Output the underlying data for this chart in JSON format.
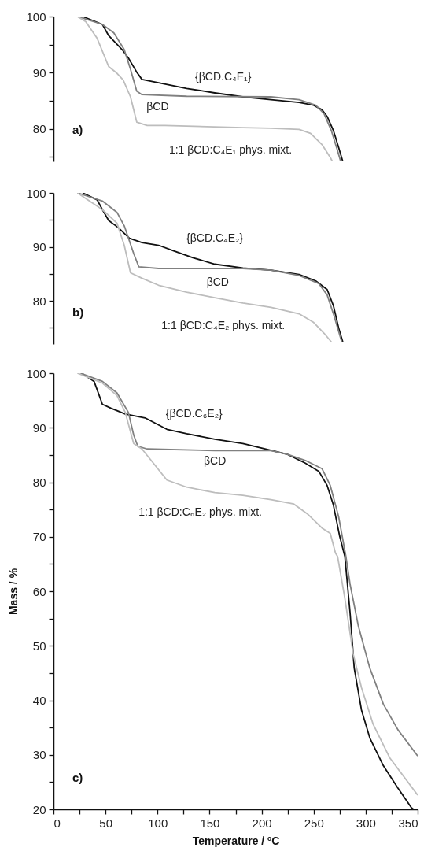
{
  "chart_data": [
    {
      "type": "line",
      "xlim": [
        0,
        350
      ],
      "ylim": [
        74.2,
        100
      ],
      "yticks": [
        {
          "value": 75,
          "label": null
        },
        80,
        {
          "value": 85,
          "label": null
        },
        90,
        {
          "value": 95,
          "label": null
        },
        100
      ],
      "tick_labels": "y",
      "series": [
        {
          "name": "{βCD.C₄E₁}",
          "color": "#111111",
          "x": [
            28,
            47,
            53,
            66,
            72,
            80,
            85,
            101,
            128,
            155,
            182,
            209,
            236,
            250,
            258,
            263,
            269,
            274,
            278
          ],
          "values": [
            100,
            98.6,
            96.6,
            94.1,
            92.6,
            90.1,
            88.8,
            88.2,
            87.2,
            86.4,
            85.7,
            85.2,
            84.7,
            84.2,
            83.4,
            82.2,
            79.7,
            76.7,
            74.2
          ]
        },
        {
          "name": "βCD",
          "color": "#808080",
          "x": [
            23,
            47,
            58,
            68,
            74,
            80,
            85,
            128,
            209,
            236,
            252,
            260,
            267,
            272,
            276
          ],
          "values": [
            100,
            98.6,
            97.1,
            94.1,
            90.6,
            86.7,
            86.1,
            85.8,
            85.7,
            85.2,
            84.2,
            82.7,
            79.7,
            76.7,
            74.2
          ]
        },
        {
          "name": "1:1 βCD:C₄E₁ phys. mixt.",
          "color": "#bdbdbd",
          "x": [
            23,
            31,
            42,
            53,
            61,
            67,
            74,
            80,
            90,
            107,
            128,
            182,
            209,
            236,
            247,
            258,
            266,
            268
          ],
          "values": [
            100,
            99.1,
            96.1,
            91.1,
            89.9,
            88.7,
            85.7,
            81.2,
            80.6,
            80.6,
            80.5,
            80.2,
            80.1,
            79.9,
            79.2,
            77.2,
            74.9,
            74.2
          ]
        }
      ],
      "annotations": [
        "a)"
      ]
    },
    {
      "type": "line",
      "xlim": [
        0,
        350
      ],
      "ylim": [
        72,
        100
      ],
      "yticks": [
        {
          "value": 75,
          "label": null
        },
        80,
        {
          "value": 85,
          "label": null
        },
        90,
        {
          "value": 95,
          "label": null
        },
        100
      ],
      "tick_labels": "y",
      "series": [
        {
          "name": "{βCD.C₄E₂}",
          "color": "#111111",
          "x": [
            28,
            42,
            47,
            53,
            62,
            73,
            85,
            101,
            115,
            134,
            155,
            182,
            209,
            236,
            252,
            263,
            269,
            274,
            278
          ],
          "values": [
            100,
            98.7,
            96.9,
            94.9,
            93.6,
            91.6,
            90.8,
            90.3,
            89.3,
            88.0,
            86.8,
            86.1,
            85.7,
            84.9,
            83.7,
            82.1,
            79.1,
            75,
            72.4
          ]
        },
        {
          "name": "βCD",
          "color": "#808080",
          "x": [
            23,
            47,
            61,
            68,
            77,
            82,
            101,
            182,
            209,
            236,
            255,
            263,
            269,
            277
          ],
          "values": [
            100,
            98.5,
            96.4,
            93.9,
            88.8,
            86.3,
            86.0,
            86.0,
            85.7,
            84.7,
            83.2,
            81.1,
            77.6,
            72.4
          ]
        },
        {
          "name": "1:1 βCD:C₄E₂ phys. mixt.",
          "color": "#bdbdbd",
          "x": [
            23,
            47,
            61,
            68,
            74,
            85,
            101,
            128,
            155,
            182,
            209,
            236,
            250,
            260,
            267
          ],
          "values": [
            100,
            96.9,
            94.4,
            90.3,
            85.2,
            84.2,
            82.9,
            81.6,
            80.6,
            79.6,
            78.8,
            77.6,
            76.0,
            74.0,
            72.4
          ]
        }
      ],
      "annotations": [
        "b)"
      ]
    },
    {
      "type": "line",
      "xlabel": "Temperature / ºC",
      "ylabel": "Mass / %",
      "xlim": [
        0,
        350
      ],
      "xticks": [
        0,
        {
          "value": 25,
          "label": null
        },
        50,
        {
          "value": 75,
          "label": null
        },
        100,
        {
          "value": 125,
          "label": null
        },
        150,
        {
          "value": 175,
          "label": null
        },
        200,
        {
          "value": 225,
          "label": null
        },
        250,
        {
          "value": 275,
          "label": null
        },
        300,
        {
          "value": 325,
          "label": null
        },
        350
      ],
      "ylim": [
        20,
        100
      ],
      "yticks": [
        20,
        {
          "value": 25,
          "label": null
        },
        30,
        {
          "value": 35,
          "label": null
        },
        40,
        {
          "value": 45,
          "label": null
        },
        50,
        {
          "value": 55,
          "label": null
        },
        60,
        {
          "value": 65,
          "label": null
        },
        70,
        {
          "value": 75,
          "label": null
        },
        80,
        {
          "value": 85,
          "label": null
        },
        90,
        {
          "value": 95,
          "label": null
        },
        100
      ],
      "series": [
        {
          "name": "{βCD.C₆E₂}",
          "color": "#111111",
          "x": [
            27,
            39,
            47,
            55,
            69,
            88,
            109,
            128,
            155,
            182,
            204,
            225,
            242,
            255,
            263,
            269,
            275,
            280,
            285,
            289,
            296,
            304,
            317,
            331,
            344,
            346
          ],
          "values": [
            100,
            98.5,
            94.3,
            93.6,
            92.5,
            91.8,
            89.7,
            88.9,
            87.9,
            87.1,
            86.1,
            85.1,
            83.5,
            82.0,
            79.4,
            75.8,
            70.1,
            66.4,
            56.1,
            45.9,
            38.2,
            33.1,
            28.0,
            23.9,
            20.3,
            20
          ]
        },
        {
          "name": "βCD",
          "color": "#808080",
          "x": [
            26,
            47,
            61,
            72,
            77,
            81,
            90,
            155,
            209,
            225,
            242,
            258,
            266,
            274,
            281,
            285,
            293,
            304,
            317,
            331,
            350
          ],
          "values": [
            100,
            98.5,
            96.4,
            92.8,
            88.7,
            86.6,
            86.1,
            85.8,
            85.8,
            85.1,
            84.0,
            82.5,
            79.4,
            73.7,
            66.4,
            61.3,
            53.6,
            45.9,
            39.3,
            34.6,
            29.8
          ]
        },
        {
          "name": "1:1 βCD:C₆E₂ phys. mixt.",
          "color": "#bdbdbd",
          "x": [
            23,
            47,
            61,
            69,
            77,
            85,
            96,
            109,
            128,
            155,
            182,
            209,
            231,
            244,
            258,
            266,
            271,
            273,
            280,
            288,
            296,
            307,
            323,
            350
          ],
          "values": [
            100,
            98.2,
            95.9,
            92.8,
            87.1,
            86.1,
            83.5,
            80.4,
            79.1,
            78.1,
            77.6,
            76.8,
            76.0,
            74.2,
            71.6,
            70.6,
            67.0,
            66.4,
            58.7,
            48.5,
            42.3,
            35.7,
            29.5,
            22.6
          ]
        }
      ],
      "annotations": [
        "c)"
      ]
    }
  ]
}
